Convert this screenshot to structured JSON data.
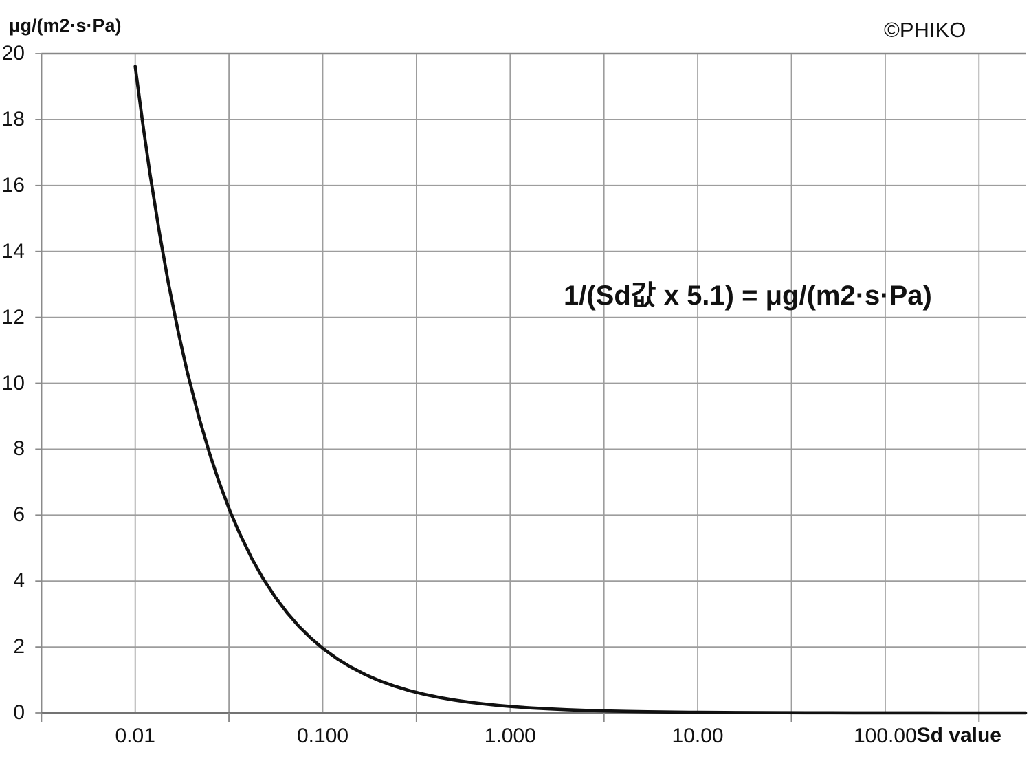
{
  "watermark": "©PHIKO",
  "chart_data": {
    "type": "line",
    "title": "",
    "ylabel": "μg/(m2·s·Pa)",
    "xlabel": "Sd value",
    "annotation": "1/(Sd값 x 5.1) = μg/(m2·s·Pa)",
    "x_scale": "log",
    "xlim_log10": [
      -2.5,
      2.75
    ],
    "ylim": [
      0,
      20
    ],
    "grid": true,
    "x_tick_values": [
      0.01,
      0.1,
      1,
      10,
      100
    ],
    "x_tick_labels": [
      "0.01",
      "0.100",
      "1.000",
      "10.00",
      "100.00"
    ],
    "y_ticks": [
      0,
      2,
      4,
      6,
      8,
      10,
      12,
      14,
      16,
      18,
      20
    ],
    "series": [
      {
        "name": "1/(Sd x 5.1)",
        "color": "#111111",
        "points": [
          [
            0.01,
            19.61
          ],
          [
            0.011,
            17.83
          ],
          [
            0.012,
            16.34
          ],
          [
            0.0135,
            14.52
          ],
          [
            0.015,
            13.07
          ],
          [
            0.017,
            11.53
          ],
          [
            0.019,
            10.32
          ],
          [
            0.022,
            8.913
          ],
          [
            0.025,
            7.843
          ],
          [
            0.028,
            7.003
          ],
          [
            0.032,
            6.127
          ],
          [
            0.036,
            5.447
          ],
          [
            0.042,
            4.669
          ],
          [
            0.048,
            4.085
          ],
          [
            0.056,
            3.501
          ],
          [
            0.065,
            3.017
          ],
          [
            0.075,
            2.614
          ],
          [
            0.087,
            2.254
          ],
          [
            0.1,
            1.961
          ],
          [
            0.12,
            1.634
          ],
          [
            0.14,
            1.401
          ],
          [
            0.17,
            1.153
          ],
          [
            0.2,
            0.9804
          ],
          [
            0.24,
            0.817
          ],
          [
            0.29,
            0.6761
          ],
          [
            0.35,
            0.5602
          ],
          [
            0.42,
            0.4669
          ],
          [
            0.5,
            0.3922
          ],
          [
            0.6,
            0.3268
          ],
          [
            0.72,
            0.2723
          ],
          [
            0.87,
            0.2254
          ],
          [
            1.0,
            0.1961
          ],
          [
            1.3,
            0.1508
          ],
          [
            1.6,
            0.1225
          ],
          [
            2.0,
            0.098
          ],
          [
            2.6,
            0.0754
          ],
          [
            3.3,
            0.0594
          ],
          [
            4.2,
            0.0467
          ],
          [
            5.4,
            0.0363
          ],
          [
            7.0,
            0.028
          ],
          [
            9.0,
            0.0218
          ],
          [
            12,
            0.0163
          ],
          [
            16,
            0.0123
          ],
          [
            21,
            0.0093
          ],
          [
            28,
            0.007
          ],
          [
            38,
            0.0052
          ],
          [
            51,
            0.0038
          ],
          [
            68,
            0.0029
          ],
          [
            91,
            0.0022
          ],
          [
            122,
            0.0016
          ],
          [
            164,
            0.0012
          ],
          [
            220,
            0.0009
          ],
          [
            295,
            0.0007
          ],
          [
            396,
            0.0005
          ],
          [
            560,
            0.00035
          ]
        ]
      }
    ],
    "colors": {
      "gridline": "#9d9d9d",
      "axis": "#7a7a7a",
      "curve": "#111111",
      "background": "#ffffff",
      "text": "#111111"
    }
  }
}
